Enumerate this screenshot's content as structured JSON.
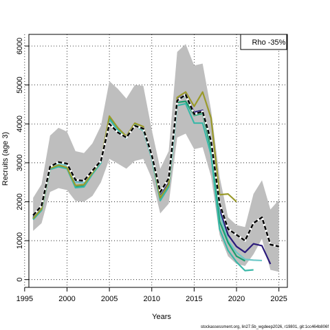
{
  "chart_data": {
    "type": "line",
    "xlabel": "Years",
    "ylabel": "Recruits (age 3)",
    "xlim": [
      1995.5,
      2026
    ],
    "ylim": [
      -200,
      6300
    ],
    "xticks": [
      1995,
      2000,
      2005,
      2010,
      2015,
      2020,
      2025
    ],
    "yticks": [
      0,
      1000,
      2000,
      3000,
      4000,
      5000,
      6000
    ],
    "grid": true,
    "legend": {
      "placement": "top-right",
      "text": "Rho -35%"
    },
    "footer": "stockassessment.org, lin27.5b_wgdeep2026, r19801, git:1cc464b806f",
    "band": {
      "x": [
        1996,
        1997,
        1998,
        1999,
        2000,
        2001,
        2002,
        2003,
        2004,
        2005,
        2006,
        2007,
        2008,
        2009,
        2010,
        2011,
        2012,
        2013,
        2014,
        2015,
        2016,
        2017,
        2018,
        2019,
        2020,
        2021,
        2022,
        2023,
        2024,
        2025
      ],
      "upper": [
        2100,
        2450,
        3700,
        3900,
        3800,
        3300,
        3250,
        3500,
        3950,
        5100,
        4900,
        4650,
        5000,
        4980,
        3850,
        2850,
        3300,
        5850,
        6050,
        5500,
        5550,
        4350,
        2650,
        1600,
        1400,
        1350,
        2200,
        2550,
        1800,
        2050
      ],
      "lower": [
        1250,
        1450,
        2250,
        2350,
        2300,
        2020,
        2000,
        2150,
        2500,
        3100,
        2980,
        2850,
        3050,
        3100,
        2600,
        1700,
        1950,
        3650,
        3750,
        3350,
        3400,
        2650,
        1150,
        600,
        400,
        350,
        650,
        1050,
        250,
        200
      ]
    },
    "series": [
      {
        "color": "#000000",
        "dashed": true,
        "x": [
          1996,
          1997,
          1998,
          1999,
          2000,
          2001,
          2002,
          2003,
          2004,
          2005,
          2006,
          2007,
          2008,
          2009,
          2010,
          2011,
          2012,
          2013,
          2014,
          2015,
          2016,
          2017,
          2018,
          2019,
          2020,
          2021,
          2022,
          2023,
          2024,
          2025
        ],
        "values": [
          1650,
          1900,
          2900,
          3020,
          2980,
          2560,
          2540,
          2800,
          3050,
          4000,
          3780,
          3650,
          3950,
          3880,
          3200,
          2250,
          2600,
          4600,
          4750,
          4250,
          4320,
          3550,
          1950,
          1300,
          1150,
          1000,
          1450,
          1600,
          900,
          850
        ]
      },
      {
        "color": "#2a1a7a",
        "dashed": false,
        "x": [
          1996,
          1997,
          1998,
          1999,
          2000,
          2001,
          2002,
          2003,
          2004,
          2005,
          2006,
          2007,
          2008,
          2009,
          2010,
          2011,
          2012,
          2013,
          2014,
          2015,
          2016,
          2017,
          2018,
          2019,
          2020,
          2021,
          2022,
          2023,
          2024
        ],
        "values": [
          1600,
          1850,
          2880,
          3000,
          2950,
          2520,
          2500,
          2770,
          3030,
          4150,
          3820,
          3640,
          3960,
          3890,
          3150,
          2150,
          2480,
          4630,
          4760,
          4300,
          4350,
          3500,
          1800,
          1150,
          850,
          700,
          920,
          870,
          400
        ]
      },
      {
        "color": "#6ec8c8",
        "dashed": false,
        "x": [
          1996,
          1997,
          1998,
          1999,
          2000,
          2001,
          2002,
          2003,
          2004,
          2005,
          2006,
          2007,
          2008,
          2009,
          2010,
          2011,
          2012,
          2013,
          2014,
          2015,
          2016,
          2017,
          2018,
          2019,
          2020,
          2021,
          2022,
          2023
        ],
        "values": [
          1580,
          1830,
          2860,
          2990,
          2930,
          2500,
          2490,
          2760,
          3020,
          4140,
          3810,
          3630,
          3950,
          3880,
          3140,
          2120,
          2450,
          4600,
          4720,
          4250,
          4300,
          3450,
          1700,
          1000,
          700,
          520,
          500,
          490
        ]
      },
      {
        "color": "#1a9e6e",
        "dashed": false,
        "x": [
          1996,
          1997,
          1998,
          1999,
          2000,
          2001,
          2002,
          2003,
          2004,
          2005,
          2006,
          2007,
          2008,
          2009,
          2010,
          2011,
          2012,
          2013,
          2014,
          2015,
          2016,
          2017,
          2018,
          2019,
          2020,
          2021
        ],
        "values": [
          1560,
          1800,
          2850,
          2920,
          2870,
          2380,
          2400,
          2730,
          3020,
          4180,
          3880,
          3660,
          3980,
          3850,
          3150,
          2050,
          2400,
          4550,
          4580,
          4220,
          4270,
          3350,
          1500,
          950,
          600,
          480
        ]
      },
      {
        "color": "#3ab8a8",
        "dashed": false,
        "x": [
          1996,
          1997,
          1998,
          1999,
          2000,
          2001,
          2002,
          2003,
          2004,
          2005,
          2006,
          2007,
          2008,
          2009,
          2010,
          2011,
          2012,
          2013,
          2014,
          2015,
          2016,
          2017,
          2018,
          2019,
          2020,
          2021,
          2022
        ],
        "values": [
          1540,
          1780,
          2830,
          2900,
          2850,
          2360,
          2380,
          2710,
          3000,
          4120,
          3850,
          3640,
          3960,
          3830,
          3120,
          2030,
          2380,
          4470,
          4520,
          4020,
          4020,
          3200,
          1300,
          750,
          450,
          230,
          250
        ]
      },
      {
        "color": "#9a9a2a",
        "dashed": false,
        "x": [
          1996,
          1997,
          1998,
          1999,
          2000,
          2001,
          2002,
          2003,
          2004,
          2005,
          2006,
          2007,
          2008,
          2009,
          2010,
          2011,
          2012,
          2013,
          2014,
          2015,
          2016,
          2017,
          2018,
          2019,
          2020
        ],
        "values": [
          1570,
          1820,
          2860,
          2940,
          2880,
          2420,
          2440,
          2750,
          3050,
          4200,
          3900,
          3680,
          4020,
          3930,
          3200,
          2100,
          2450,
          4680,
          4820,
          4450,
          4820,
          4150,
          2180,
          2200,
          2000
        ]
      }
    ]
  }
}
